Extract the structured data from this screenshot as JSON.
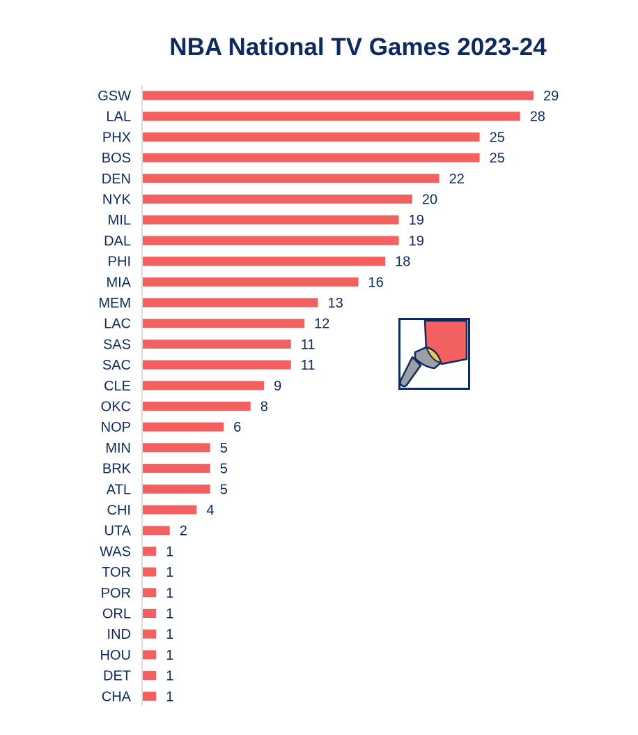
{
  "chart_data": {
    "type": "bar",
    "orientation": "horizontal",
    "title": "NBA National TV Games 2023-24",
    "xlabel": "",
    "ylabel": "",
    "categories": [
      "GSW",
      "LAL",
      "PHX",
      "BOS",
      "DEN",
      "NYK",
      "MIL",
      "DAL",
      "PHI",
      "MIA",
      "MEM",
      "LAC",
      "SAS",
      "SAC",
      "CLE",
      "OKC",
      "NOP",
      "MIN",
      "BRK",
      "ATL",
      "CHI",
      "UTA",
      "WAS",
      "TOR",
      "POR",
      "ORL",
      "IND",
      "HOU",
      "DET",
      "CHA"
    ],
    "values": [
      29,
      28,
      25,
      25,
      22,
      20,
      19,
      19,
      18,
      16,
      13,
      12,
      11,
      11,
      9,
      8,
      6,
      5,
      5,
      5,
      4,
      2,
      1,
      1,
      1,
      1,
      1,
      1,
      1,
      1
    ],
    "xlim": [
      0,
      29
    ],
    "grid": false,
    "legend": "none",
    "data_labels": true,
    "colors": {
      "bar": "#f26060",
      "text": "#0f2a5c",
      "axis": "#d0d0d0"
    },
    "icon": "flashlight-icon"
  }
}
